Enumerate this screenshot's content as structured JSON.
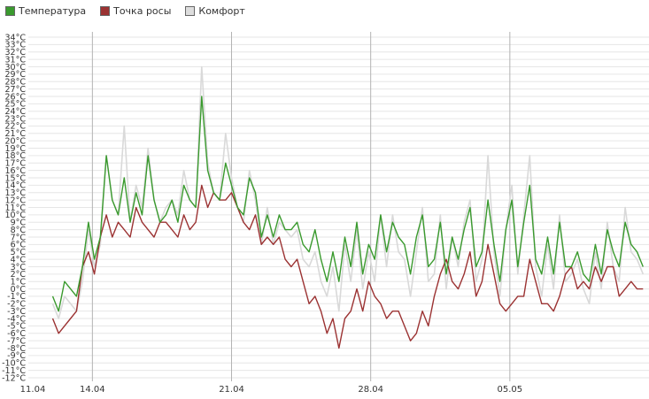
{
  "chart_data": {
    "type": "line",
    "title": "",
    "xlabel": "",
    "ylabel": "",
    "unit": "°C",
    "ylim": [
      -12,
      34
    ],
    "ytick_step": 1,
    "y_ticks": [
      "34°C",
      "33°C",
      "32°C",
      "31°C",
      "30°C",
      "29°C",
      "28°C",
      "27°C",
      "26°C",
      "25°C",
      "24°C",
      "23°C",
      "22°C",
      "21°C",
      "20°C",
      "19°C",
      "18°C",
      "17°C",
      "16°C",
      "15°C",
      "14°C",
      "13°C",
      "12°C",
      "11°C",
      "10°C",
      "9°C",
      "8°C",
      "7°C",
      "6°C",
      "5°C",
      "4°C",
      "3°C",
      "2°C",
      "1°C",
      "0°C",
      "-1°C",
      "-2°C",
      "-3°C",
      "-4°C",
      "-5°C",
      "-6°C",
      "-7°C",
      "-8°C",
      "-9°C",
      "-10°C",
      "-11°C",
      "-12°C"
    ],
    "x_ticks": [
      "11.04",
      "14.04",
      "21.04",
      "28.04",
      "05.05"
    ],
    "x_vertical_gridlines_at": [
      "14.04",
      "21.04",
      "28.04",
      "05.05"
    ],
    "xlim_days": [
      0,
      31
    ],
    "x_ticks_days": [
      0,
      3,
      10,
      17,
      24
    ],
    "grid": true,
    "legend_position": "top-left",
    "series": [
      {
        "name": "Температура",
        "color": "#3a9a2e",
        "x_days": [
          1.0,
          1.3,
          1.6,
          1.9,
          2.2,
          2.5,
          2.8,
          3.1,
          3.4,
          3.7,
          4.0,
          4.3,
          4.6,
          4.9,
          5.2,
          5.5,
          5.8,
          6.1,
          6.4,
          6.7,
          7.0,
          7.3,
          7.6,
          7.9,
          8.2,
          8.5,
          8.8,
          9.1,
          9.4,
          9.7,
          10.0,
          10.3,
          10.6,
          10.9,
          11.2,
          11.5,
          11.8,
          12.1,
          12.4,
          12.7,
          13.0,
          13.3,
          13.6,
          13.9,
          14.2,
          14.5,
          14.8,
          15.1,
          15.4,
          15.7,
          16.0,
          16.3,
          16.6,
          16.9,
          17.2,
          17.5,
          17.8,
          18.1,
          18.4,
          18.7,
          19.0,
          19.3,
          19.6,
          19.9,
          20.2,
          20.5,
          20.8,
          21.1,
          21.4,
          21.7,
          22.0,
          22.3,
          22.6,
          22.9,
          23.2,
          23.5,
          23.8,
          24.1,
          24.4,
          24.7,
          25.0,
          25.3,
          25.6,
          25.9,
          26.2,
          26.5,
          26.8,
          27.1,
          27.4,
          27.7,
          28.0,
          28.3,
          28.6,
          28.9,
          29.2,
          29.5,
          29.8,
          30.1,
          30.4,
          30.7
        ],
        "values": [
          -1,
          -3,
          1,
          0,
          -1,
          3,
          9,
          4,
          7,
          18,
          12,
          10,
          15,
          9,
          13,
          10,
          18,
          12,
          9,
          10,
          12,
          9,
          14,
          12,
          11,
          26,
          16,
          13,
          12,
          17,
          14,
          11,
          10,
          15,
          13,
          7,
          10,
          7,
          10,
          8,
          8,
          9,
          6,
          5,
          8,
          4,
          1,
          5,
          1,
          7,
          3,
          9,
          2,
          6,
          4,
          10,
          5,
          9,
          7,
          6,
          2,
          7,
          10,
          3,
          4,
          9,
          2,
          7,
          4,
          8,
          11,
          3,
          5,
          12,
          6,
          1,
          8,
          12,
          3,
          9,
          14,
          4,
          2,
          7,
          2,
          9,
          3,
          3,
          5,
          2,
          1,
          6,
          2,
          8,
          5,
          3,
          9,
          6,
          5,
          3
        ]
      },
      {
        "name": "Точка росы",
        "color": "#9b3232",
        "x_days": [
          1.0,
          1.3,
          1.6,
          1.9,
          2.2,
          2.5,
          2.8,
          3.1,
          3.4,
          3.7,
          4.0,
          4.3,
          4.6,
          4.9,
          5.2,
          5.5,
          5.8,
          6.1,
          6.4,
          6.7,
          7.0,
          7.3,
          7.6,
          7.9,
          8.2,
          8.5,
          8.8,
          9.1,
          9.4,
          9.7,
          10.0,
          10.3,
          10.6,
          10.9,
          11.2,
          11.5,
          11.8,
          12.1,
          12.4,
          12.7,
          13.0,
          13.3,
          13.6,
          13.9,
          14.2,
          14.5,
          14.8,
          15.1,
          15.4,
          15.7,
          16.0,
          16.3,
          16.6,
          16.9,
          17.2,
          17.5,
          17.8,
          18.1,
          18.4,
          18.7,
          19.0,
          19.3,
          19.6,
          19.9,
          20.2,
          20.5,
          20.8,
          21.1,
          21.4,
          21.7,
          22.0,
          22.3,
          22.6,
          22.9,
          23.2,
          23.5,
          23.8,
          24.1,
          24.4,
          24.7,
          25.0,
          25.3,
          25.6,
          25.9,
          26.2,
          26.5,
          26.8,
          27.1,
          27.4,
          27.7,
          28.0,
          28.3,
          28.6,
          28.9,
          29.2,
          29.5,
          29.8,
          30.1,
          30.4,
          30.7
        ],
        "values": [
          -4,
          -6,
          -5,
          -4,
          -3,
          3,
          5,
          2,
          7,
          10,
          7,
          9,
          8,
          7,
          11,
          9,
          8,
          7,
          9,
          9,
          8,
          7,
          10,
          8,
          9,
          14,
          11,
          13,
          12,
          12,
          13,
          11,
          9,
          8,
          10,
          6,
          7,
          6,
          7,
          4,
          3,
          4,
          1,
          -2,
          -1,
          -3,
          -6,
          -4,
          -8,
          -4,
          -3,
          0,
          -3,
          1,
          -1,
          -2,
          -4,
          -3,
          -3,
          -5,
          -7,
          -6,
          -3,
          -5,
          -1,
          2,
          4,
          1,
          0,
          2,
          5,
          -1,
          1,
          6,
          2,
          -2,
          -3,
          -2,
          -1,
          -1,
          4,
          1,
          -2,
          -2,
          -3,
          -1,
          2,
          3,
          0,
          1,
          0,
          3,
          1,
          3,
          3,
          -1,
          0,
          1,
          0,
          0
        ]
      },
      {
        "name": "Комфорт",
        "color": "#d9d9d9",
        "x_days": [
          1.0,
          1.3,
          1.6,
          1.9,
          2.2,
          2.5,
          2.8,
          3.1,
          3.4,
          3.7,
          4.0,
          4.3,
          4.6,
          4.9,
          5.2,
          5.5,
          5.8,
          6.1,
          6.4,
          6.7,
          7.0,
          7.3,
          7.6,
          7.9,
          8.2,
          8.5,
          8.8,
          9.1,
          9.4,
          9.7,
          10.0,
          10.3,
          10.6,
          10.9,
          11.2,
          11.5,
          11.8,
          12.1,
          12.4,
          12.7,
          13.0,
          13.3,
          13.6,
          13.9,
          14.2,
          14.5,
          14.8,
          15.1,
          15.4,
          15.7,
          16.0,
          16.3,
          16.6,
          16.9,
          17.2,
          17.5,
          17.8,
          18.1,
          18.4,
          18.7,
          19.0,
          19.3,
          19.6,
          19.9,
          20.2,
          20.5,
          20.8,
          21.1,
          21.4,
          21.7,
          22.0,
          22.3,
          22.6,
          22.9,
          23.2,
          23.5,
          23.8,
          24.1,
          24.4,
          24.7,
          25.0,
          25.3,
          25.6,
          25.9,
          26.2,
          26.5,
          26.8,
          27.1,
          27.4,
          27.7,
          28.0,
          28.3,
          28.6,
          28.9,
          29.2,
          29.5,
          29.8,
          30.1,
          30.4,
          30.7
        ],
        "values": [
          -2,
          -4,
          -1,
          -2,
          -3,
          1,
          8,
          3,
          6,
          18,
          12,
          10,
          22,
          9,
          14,
          11,
          19,
          12,
          9,
          11,
          12,
          10,
          16,
          12,
          11,
          30,
          17,
          13,
          12,
          21,
          15,
          11,
          9,
          16,
          12,
          6,
          11,
          6,
          9,
          8,
          7,
          8,
          4,
          3,
          5,
          1,
          -1,
          3,
          -3,
          6,
          1,
          8,
          0,
          5,
          1,
          10,
          3,
          10,
          5,
          4,
          -1,
          5,
          11,
          1,
          2,
          10,
          0,
          7,
          3,
          9,
          12,
          1,
          4,
          18,
          5,
          -1,
          8,
          14,
          2,
          10,
          18,
          3,
          -1,
          6,
          0,
          10,
          1,
          2,
          4,
          0,
          -2,
          5,
          0,
          9,
          3,
          1,
          11,
          5,
          4,
          2
        ]
      }
    ]
  }
}
